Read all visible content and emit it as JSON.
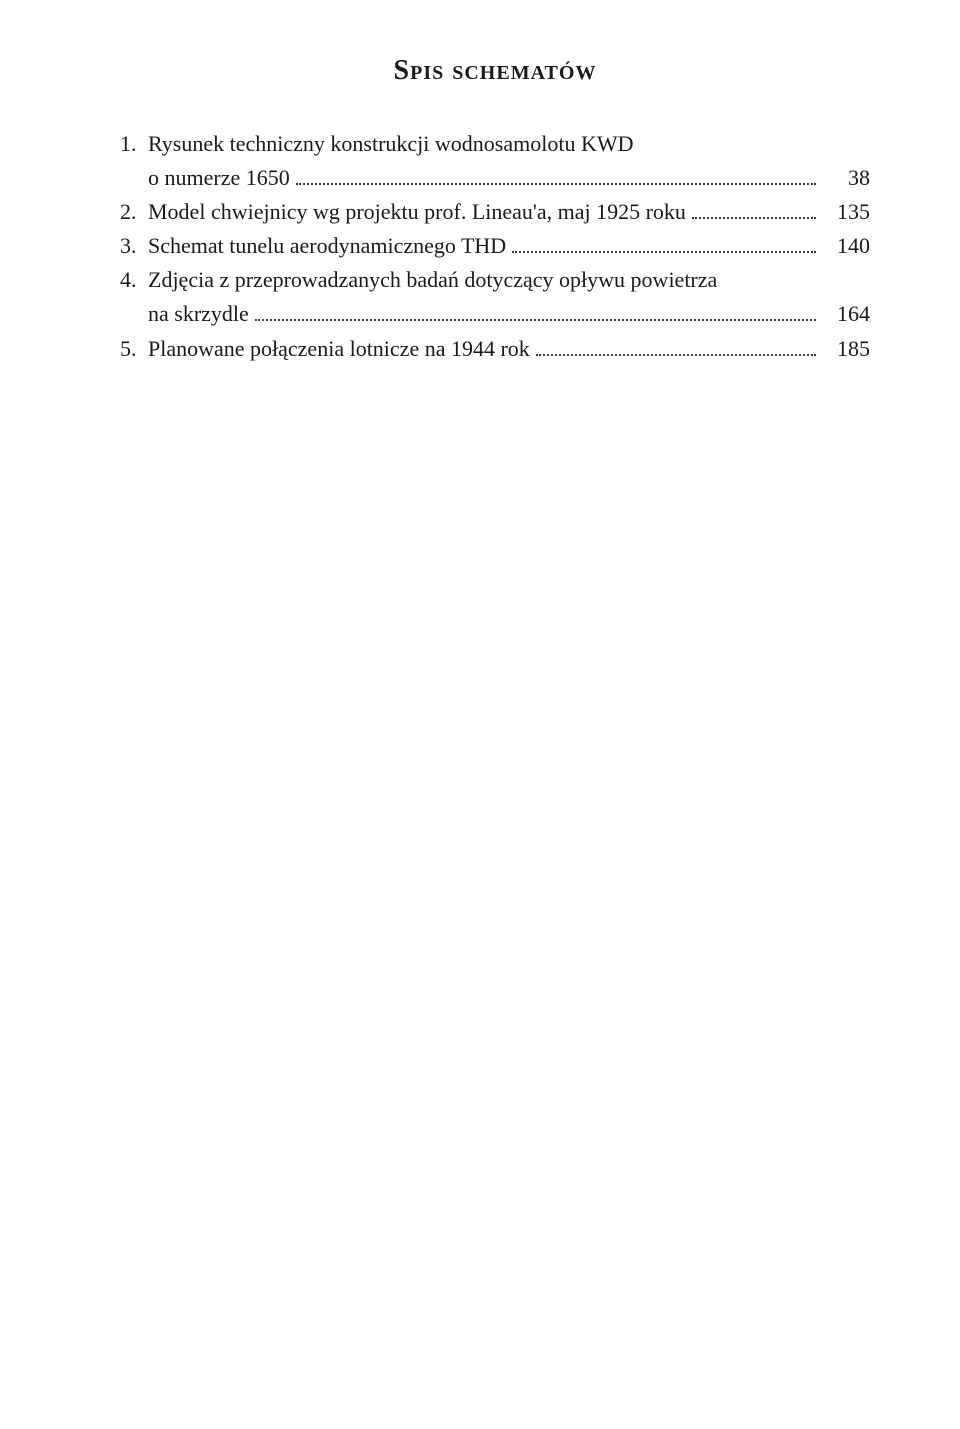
{
  "title": "Spis schematów",
  "entries": [
    {
      "num": "1.",
      "lines": [
        "Rysunek techniczny konstrukcji wodnosamolotu KWD",
        "o numerze 1650"
      ],
      "page": "38"
    },
    {
      "num": "2.",
      "lines": [
        "Model chwiejnicy wg projektu prof. Lineau'a, maj 1925 roku"
      ],
      "page": "135"
    },
    {
      "num": "3.",
      "lines": [
        "Schemat tunelu aerodynamicznego THD"
      ],
      "page": "140"
    },
    {
      "num": "4.",
      "lines": [
        "Zdjęcia z przeprowadzanych badań dotyczący opływu powietrza",
        "na skrzydle"
      ],
      "page": "164"
    },
    {
      "num": "5.",
      "lines": [
        "Planowane połączenia lotnicze na 1944 rok"
      ],
      "page": "185"
    }
  ]
}
